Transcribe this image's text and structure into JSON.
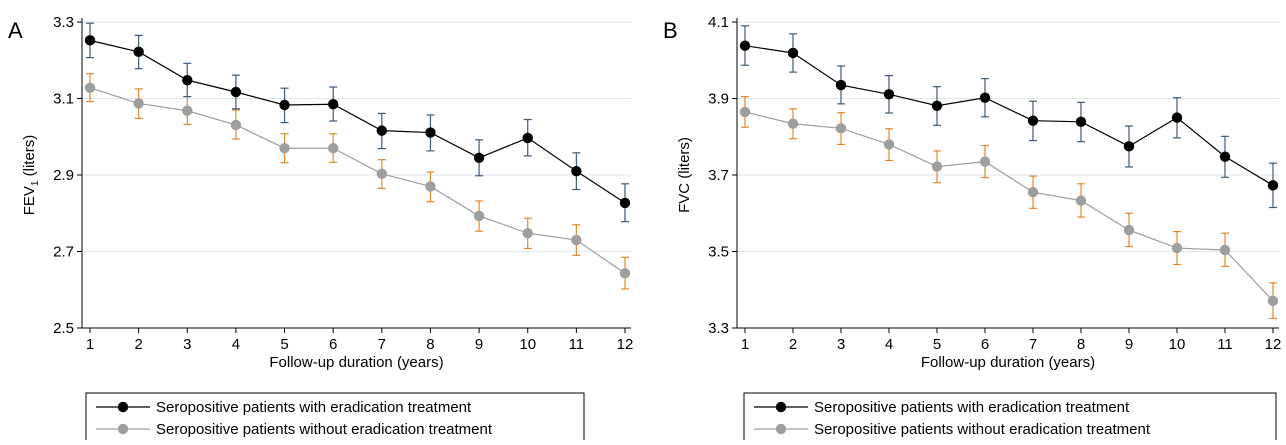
{
  "colors": {
    "with_series": "#000000",
    "without_series": "#9e9e9e",
    "with_errorbar": "#3d5a78",
    "without_errorbar": "#e08a2c",
    "grid": "#dde6ee"
  },
  "chart_data": [
    {
      "type": "line",
      "panel_label": "A",
      "title": "",
      "xlabel": "Follow-up duration (years)",
      "ylabel": "FEV₁ (liters)",
      "ylabel_main": "FEV",
      "ylabel_sub": "1",
      "ylabel_tail": " (liters)",
      "xlim": [
        1,
        12
      ],
      "ylim": [
        2.5,
        3.3
      ],
      "x_ticks": [
        "1",
        "2",
        "3",
        "4",
        "5",
        "6",
        "7",
        "8",
        "9",
        "10",
        "11",
        "12"
      ],
      "y_ticks": [
        "2.5",
        "2.7",
        "2.9",
        "3.1",
        "3.3"
      ],
      "grid": "horizontal",
      "legend_position": "bottom-left",
      "x": [
        1,
        2,
        3,
        4,
        5,
        6,
        7,
        8,
        9,
        10,
        11,
        12
      ],
      "series": [
        {
          "name": "Seropositive patients with eradication treatment",
          "values": [
            3.252,
            3.222,
            3.148,
            3.117,
            3.083,
            3.085,
            3.016,
            3.011,
            2.945,
            2.997,
            2.91,
            2.827
          ],
          "ci_low": [
            3.207,
            3.178,
            3.105,
            3.073,
            3.037,
            3.041,
            2.969,
            2.963,
            2.898,
            2.95,
            2.862,
            2.778
          ],
          "ci_high": [
            3.297,
            3.265,
            3.192,
            3.161,
            3.127,
            3.13,
            3.061,
            3.057,
            2.992,
            3.045,
            2.958,
            2.877
          ]
        },
        {
          "name": "Seropositive patients without eradication treatment",
          "values": [
            3.128,
            3.087,
            3.068,
            3.031,
            2.97,
            2.97,
            2.903,
            2.87,
            2.793,
            2.748,
            2.73,
            2.643
          ],
          "ci_low": [
            3.092,
            3.048,
            3.032,
            2.994,
            2.932,
            2.933,
            2.865,
            2.83,
            2.753,
            2.708,
            2.69,
            2.602
          ],
          "ci_high": [
            3.165,
            3.125,
            3.105,
            3.07,
            3.008,
            3.008,
            2.94,
            2.908,
            2.832,
            2.787,
            2.77,
            2.685
          ]
        }
      ]
    },
    {
      "type": "line",
      "panel_label": "B",
      "title": "",
      "xlabel": "Follow-up duration (years)",
      "ylabel": "FVC (liters)",
      "ylabel_main": "FVC (liters)",
      "ylabel_sub": "",
      "ylabel_tail": "",
      "xlim": [
        1,
        12
      ],
      "ylim": [
        3.3,
        4.1
      ],
      "x_ticks": [
        "1",
        "2",
        "3",
        "4",
        "5",
        "6",
        "7",
        "8",
        "9",
        "10",
        "11",
        "12"
      ],
      "y_ticks": [
        "3.3",
        "3.5",
        "3.7",
        "3.9",
        "4.1"
      ],
      "grid": "horizontal",
      "legend_position": "bottom-left",
      "x": [
        1,
        2,
        3,
        4,
        5,
        6,
        7,
        8,
        9,
        10,
        11,
        12
      ],
      "series": [
        {
          "name": "Seropositive patients with eradication treatment",
          "values": [
            4.038,
            4.019,
            3.935,
            3.911,
            3.881,
            3.902,
            3.842,
            3.839,
            3.775,
            3.85,
            3.748,
            3.673
          ],
          "ci_low": [
            3.987,
            3.969,
            3.886,
            3.862,
            3.83,
            3.852,
            3.79,
            3.787,
            3.721,
            3.797,
            3.694,
            3.615
          ],
          "ci_high": [
            4.09,
            4.069,
            3.985,
            3.96,
            3.931,
            3.952,
            3.893,
            3.89,
            3.828,
            3.902,
            3.801,
            3.731
          ]
        },
        {
          "name": "Seropositive patients without eradication treatment",
          "values": [
            3.865,
            3.834,
            3.822,
            3.78,
            3.722,
            3.735,
            3.655,
            3.633,
            3.556,
            3.509,
            3.504,
            3.371
          ],
          "ci_low": [
            3.825,
            3.795,
            3.78,
            3.738,
            3.68,
            3.693,
            3.613,
            3.59,
            3.513,
            3.466,
            3.461,
            3.325
          ],
          "ci_high": [
            3.905,
            3.873,
            3.863,
            3.821,
            3.763,
            3.777,
            3.697,
            3.677,
            3.6,
            3.552,
            3.548,
            3.418
          ]
        }
      ]
    }
  ]
}
